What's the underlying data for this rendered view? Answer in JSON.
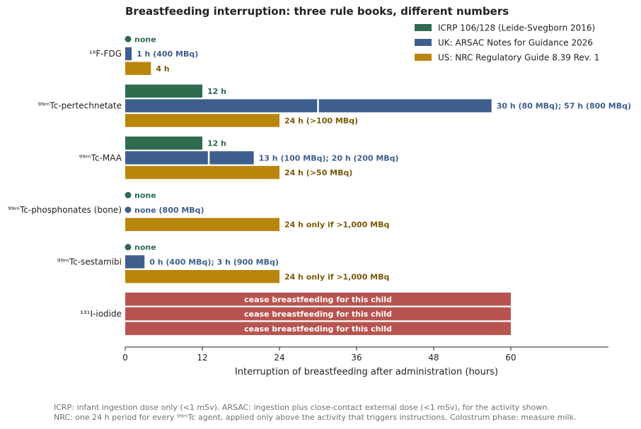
{
  "chart_data": {
    "type": "bar",
    "orientation": "horizontal",
    "title": "Breastfeeding interruption: three rule books, different numbers",
    "xlabel": "Interruption of breastfeeding after administration (hours)",
    "ylabel": "",
    "xlim": [
      0,
      75
    ],
    "xticks": [
      0,
      12,
      24,
      36,
      48,
      60
    ],
    "grid": false,
    "legend_position": "top-right",
    "categories": [
      "¹⁸F-FDG",
      "⁹⁹ᵐTc-pertechnetate",
      "⁹⁹ᵐTc-MAA",
      "⁹⁹ᵐTc-phosphonates (bone)",
      "⁹⁹ᵐTc-sestamibi",
      "¹³¹I-iodide"
    ],
    "series": [
      {
        "name": "ICRP 106/128 (Leide-Svegborn 2016)",
        "color": "#2e6b4f",
        "label_color": "#2e6b4f",
        "values": [
          0,
          12,
          12,
          0,
          0,
          60
        ],
        "split_at": [
          null,
          null,
          null,
          null,
          null,
          null
        ],
        "labels": [
          "none",
          "12 h",
          "12 h",
          "none",
          "none",
          "cease breastfeeding for this child"
        ],
        "cease": [
          false,
          false,
          false,
          false,
          false,
          true
        ]
      },
      {
        "name": "UK: ARSAC Notes for Guidance 2026",
        "color": "#3e5f8e",
        "label_color": "#3e5f8e",
        "values": [
          1,
          57,
          20,
          0,
          3,
          60
        ],
        "split_at": [
          null,
          30,
          13,
          null,
          null,
          null
        ],
        "labels": [
          "1 h (400 MBq)",
          "30 h (80 MBq); 57 h (800 MBq)",
          "13 h (100 MBq); 20 h (200 MBq)",
          "none (800 MBq)",
          "0 h (400 MBq); 3 h (900 MBq)",
          "cease breastfeeding for this child"
        ],
        "cease": [
          false,
          false,
          false,
          false,
          false,
          true
        ]
      },
      {
        "name": "US: NRC Regulatory Guide 8.39 Rev. 1",
        "color": "#b8860b",
        "label_color": "#7a5a06",
        "values": [
          4,
          24,
          24,
          24,
          24,
          60
        ],
        "split_at": [
          null,
          null,
          null,
          null,
          null,
          null
        ],
        "labels": [
          "4 h",
          "24 h (>100 MBq)",
          "24 h (>50 MBq)",
          "24 h only if >1,000 MBq",
          "24 h only if >1,000 MBq",
          "cease breastfeeding for this child"
        ],
        "cease": [
          false,
          false,
          false,
          false,
          false,
          true
        ]
      }
    ],
    "cease_color": "#b85450"
  },
  "footnotes": [
    "ICRP: infant ingestion dose only (<1 mSv). ARSAC: ingestion plus close-contact external dose (<1 mSv), for the activity shown.",
    "NRC: one 24 h period for every ⁹⁹ᵐTc agent, applied only above the activity that triggers instructions. Colostrum phase: measure milk."
  ]
}
